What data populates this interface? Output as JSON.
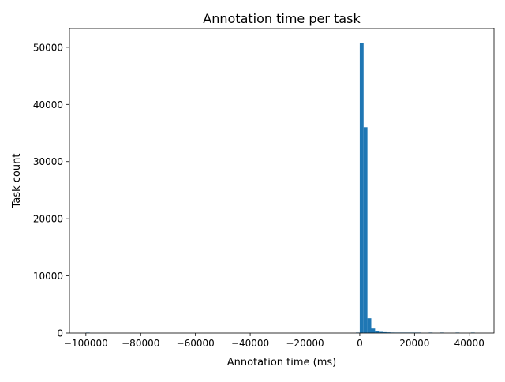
{
  "chart_data": {
    "type": "bar",
    "title": "Annotation time per task",
    "xlabel": "Annotation time (ms)",
    "ylabel": "Task count",
    "xlim": [
      -106000,
      49000
    ],
    "ylim": [
      0,
      53300
    ],
    "x_ticks": [
      -100000,
      -80000,
      -60000,
      -40000,
      -20000,
      0,
      20000,
      40000
    ],
    "x_tick_labels": [
      "−100000",
      "−80000",
      "−60000",
      "−40000",
      "−20000",
      "0",
      "20000",
      "40000"
    ],
    "y_ticks": [
      0,
      10000,
      20000,
      30000,
      40000,
      50000
    ],
    "y_tick_labels": [
      "0",
      "10000",
      "20000",
      "30000",
      "40000",
      "50000"
    ],
    "bin_width": 1400,
    "bins": [
      {
        "x0": -100000,
        "count": 3
      },
      {
        "x0": -1400,
        "count": 60
      },
      {
        "x0": 0,
        "count": 50700
      },
      {
        "x0": 1400,
        "count": 36000
      },
      {
        "x0": 2800,
        "count": 2600
      },
      {
        "x0": 4200,
        "count": 800
      },
      {
        "x0": 5600,
        "count": 400
      },
      {
        "x0": 7000,
        "count": 200
      },
      {
        "x0": 8400,
        "count": 150
      },
      {
        "x0": 9800,
        "count": 120
      },
      {
        "x0": 11200,
        "count": 90
      },
      {
        "x0": 12600,
        "count": 30
      },
      {
        "x0": 14000,
        "count": 20
      },
      {
        "x0": 15400,
        "count": 15
      },
      {
        "x0": 16800,
        "count": 10
      },
      {
        "x0": 18200,
        "count": 8
      },
      {
        "x0": 19600,
        "count": 6
      },
      {
        "x0": 21000,
        "count": 5
      },
      {
        "x0": 25200,
        "count": 3
      },
      {
        "x0": 29400,
        "count": 2
      },
      {
        "x0": 35000,
        "count": 2
      },
      {
        "x0": 40600,
        "count": 1
      }
    ],
    "grid": false,
    "bar_color": "#1f77b4"
  }
}
